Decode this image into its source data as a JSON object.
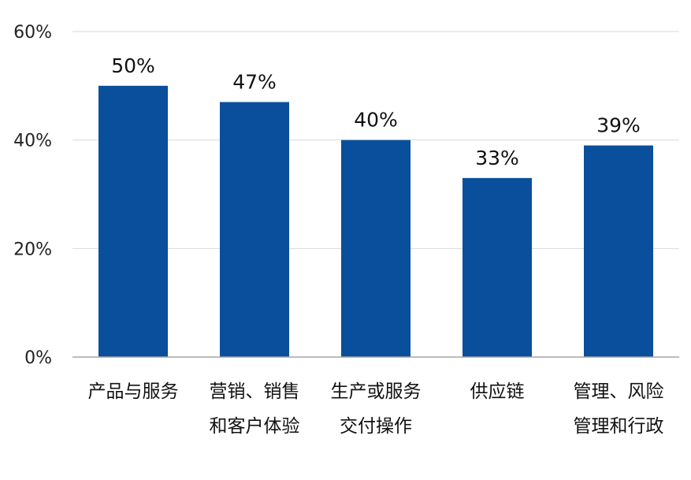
{
  "chart_data": {
    "type": "bar",
    "categories": [
      [
        "产品与服务"
      ],
      [
        "营销、销售",
        "和客户体验"
      ],
      [
        "生产或服务",
        "交付操作"
      ],
      [
        "供应链"
      ],
      [
        "管理、风险",
        "管理和行政"
      ]
    ],
    "values": [
      50,
      47,
      40,
      33,
      39
    ],
    "data_labels": [
      "50%",
      "47%",
      "40%",
      "33%",
      "39%"
    ],
    "y_ticks": [
      0,
      20,
      40,
      60
    ],
    "y_tick_labels": [
      "0%",
      "20%",
      "40%",
      "60%"
    ],
    "ylim": [
      0,
      60
    ],
    "grid": true,
    "bar_color": "#0a4f9c",
    "grid_color": "#d9d9d9",
    "axis_color": "#a6a6a6"
  }
}
